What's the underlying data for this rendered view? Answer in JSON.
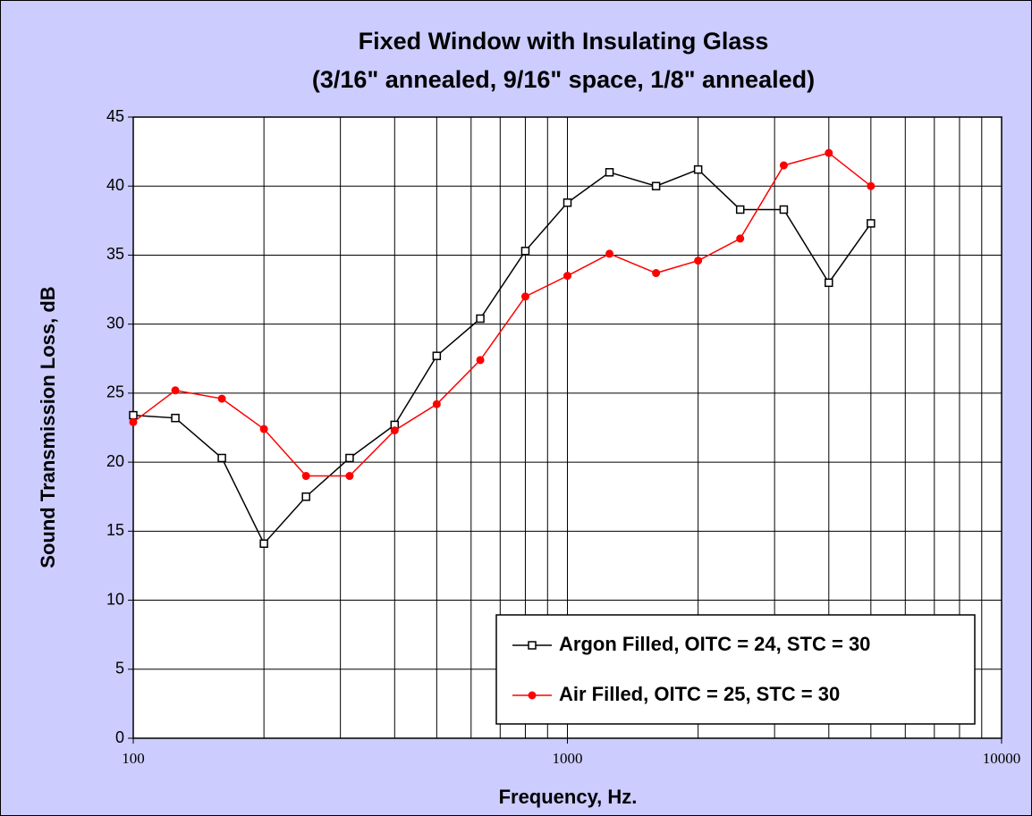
{
  "chart_data": {
    "type": "line",
    "title": "Fixed Window with Insulating Glass",
    "subtitle": "(3/16\" annealed, 9/16\" space, 1/8\" annealed)",
    "xlabel": "Frequency, Hz.",
    "ylabel": "Sound Transmission Loss, dB",
    "x": [
      100,
      125,
      160,
      200,
      250,
      315,
      400,
      500,
      630,
      800,
      1000,
      1250,
      1600,
      2000,
      2500,
      3150,
      4000,
      5000
    ],
    "series": [
      {
        "name": "Argon Filled, OITC = 24, STC = 30",
        "color": "#000000",
        "marker": "square",
        "values": [
          23.4,
          23.2,
          20.3,
          14.1,
          17.5,
          20.3,
          22.7,
          27.7,
          30.4,
          35.3,
          38.8,
          41.0,
          40.0,
          41.2,
          38.3,
          38.3,
          33.0,
          37.3
        ]
      },
      {
        "name": "Air Filled, OITC = 25, STC = 30",
        "color": "#ff0000",
        "marker": "circle",
        "values": [
          22.9,
          25.2,
          24.6,
          22.4,
          19.0,
          19.0,
          22.3,
          24.2,
          27.4,
          32.0,
          33.5,
          35.1,
          33.7,
          34.6,
          36.2,
          41.5,
          42.4,
          40.0
        ]
      }
    ],
    "xlog": true,
    "xlim": [
      100,
      10000
    ],
    "xticks": [
      100,
      1000,
      10000
    ],
    "ylim": [
      0,
      45
    ],
    "yticks": [
      0,
      5,
      10,
      15,
      20,
      25,
      30,
      35,
      40,
      45
    ],
    "grid": true,
    "x_minor_grid": true,
    "legend": "lower right",
    "background": "#ccccff",
    "plot_background": "#ffffff"
  }
}
